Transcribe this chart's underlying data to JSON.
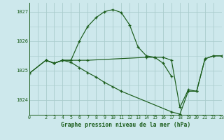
{
  "title": "Graphe pression niveau de la mer (hPa)",
  "background_color": "#cde8ec",
  "grid_color": "#aacccc",
  "line_color": "#1a5c1a",
  "xlim": [
    0,
    23
  ],
  "ylim": [
    1023.5,
    1027.3
  ],
  "yticks": [
    1024,
    1025,
    1026,
    1027
  ],
  "xticks": [
    0,
    2,
    3,
    4,
    5,
    6,
    7,
    8,
    9,
    10,
    11,
    12,
    13,
    14,
    15,
    16,
    17,
    18,
    19,
    20,
    21,
    22,
    23
  ],
  "series": [
    {
      "x": [
        0,
        2,
        3,
        4,
        5,
        6,
        7,
        8,
        9,
        10,
        11,
        12,
        13,
        14,
        15,
        16,
        17
      ],
      "y": [
        1024.9,
        1025.35,
        1025.25,
        1025.35,
        1025.35,
        1026.0,
        1026.5,
        1026.8,
        1027.0,
        1027.07,
        1026.97,
        1026.55,
        1025.8,
        1025.5,
        1025.45,
        1025.25,
        1024.8
      ]
    },
    {
      "x": [
        2,
        3,
        4,
        5,
        6,
        7,
        14,
        15,
        16,
        17,
        18,
        19,
        20,
        21,
        22,
        23
      ],
      "y": [
        1025.35,
        1025.25,
        1025.35,
        1025.35,
        1025.35,
        1025.35,
        1025.45,
        1025.45,
        1025.45,
        1025.35,
        1023.75,
        1024.35,
        1024.3,
        1025.4,
        1025.5,
        1025.5
      ]
    },
    {
      "x": [
        0,
        2,
        3,
        4,
        5,
        6,
        7,
        8,
        9,
        10,
        11,
        17,
        18,
        19,
        20,
        21,
        22,
        23
      ],
      "y": [
        1024.9,
        1025.35,
        1025.25,
        1025.35,
        1025.28,
        1025.1,
        1024.93,
        1024.78,
        1024.6,
        1024.45,
        1024.3,
        1023.6,
        1023.52,
        1024.3,
        1024.3,
        1025.4,
        1025.5,
        1025.5
      ]
    }
  ]
}
